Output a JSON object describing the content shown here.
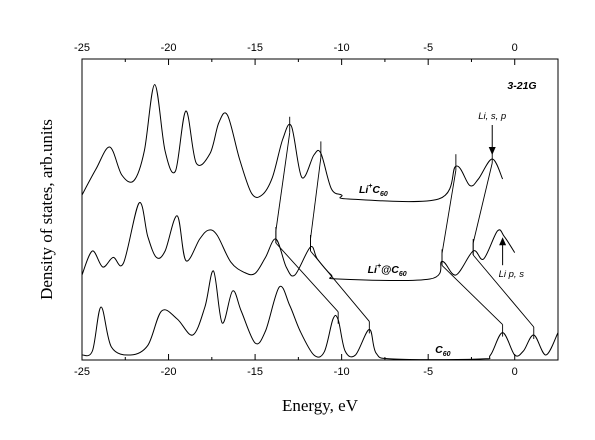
{
  "chart_data": {
    "type": "line",
    "title": "",
    "xlabel": "Energy, eV",
    "ylabel": "Density of states, arb.units",
    "xlim": [
      -25,
      2.5
    ],
    "xticks": [
      -25,
      -20,
      -15,
      -10,
      -5,
      0
    ],
    "xtick_labels": [
      "-25",
      "-20",
      "-15",
      "-10",
      "-5",
      "0"
    ],
    "top_axis": true,
    "y_ticks_shown": false,
    "grid": false,
    "legend": "none",
    "basis_label": "3-21G",
    "series": [
      {
        "label_main": "Li",
        "label_sup": "+",
        "label_after": "C",
        "label_sub": "60",
        "offset": 2.0,
        "x": [
          -25.0,
          -24.2,
          -23.4,
          -22.7,
          -22.0,
          -21.4,
          -20.8,
          -20.2,
          -19.6,
          -19.0,
          -18.4,
          -17.6,
          -17.1,
          -16.6,
          -15.9,
          -15.2,
          -14.6,
          -14.0,
          -13.4,
          -12.9,
          -12.3,
          -11.6,
          -11.2,
          -10.6,
          -10.0,
          -9.6,
          -4.4,
          -3.4,
          -2.6,
          -2.1,
          -1.3,
          -0.7
        ],
        "y": [
          0.0,
          0.32,
          0.6,
          0.25,
          0.18,
          0.55,
          1.38,
          0.55,
          0.3,
          1.05,
          0.4,
          0.52,
          0.9,
          1.0,
          0.45,
          0.02,
          0.0,
          0.22,
          0.7,
          0.86,
          0.22,
          0.5,
          0.52,
          0.08,
          0.0,
          -0.05,
          -0.05,
          0.36,
          0.12,
          0.2,
          0.45,
          0.2
        ]
      },
      {
        "label_main": "Li",
        "label_sup": "+",
        "label_after": "@C",
        "label_sub": "60",
        "offset": 1.0,
        "x": [
          -25.0,
          -24.4,
          -23.8,
          -23.2,
          -22.6,
          -21.7,
          -21.2,
          -20.7,
          -20.2,
          -19.5,
          -19.0,
          -18.2,
          -17.7,
          -17.2,
          -16.4,
          -15.6,
          -15.0,
          -14.4,
          -13.8,
          -13.2,
          -12.7,
          -11.8,
          -11.4,
          -10.6,
          -10.2,
          -4.9,
          -4.2,
          -3.4,
          -2.4,
          -1.8,
          -1.0,
          -0.6,
          0.0
        ],
        "y": [
          0.0,
          0.3,
          0.1,
          0.22,
          0.15,
          0.9,
          0.48,
          0.22,
          0.3,
          0.74,
          0.18,
          0.45,
          0.56,
          0.5,
          0.16,
          0.03,
          0.02,
          0.22,
          0.45,
          0.1,
          0.0,
          0.35,
          0.2,
          0.0,
          -0.05,
          -0.05,
          0.17,
          0.0,
          0.3,
          0.2,
          0.55,
          0.48,
          0.28
        ]
      },
      {
        "label_main": "C",
        "label_sup": "",
        "label_after": "",
        "label_sub": "60",
        "offset": 0.0,
        "x": [
          -25.0,
          -24.4,
          -23.9,
          -23.3,
          -22.2,
          -21.2,
          -20.4,
          -19.5,
          -18.6,
          -17.9,
          -17.4,
          -16.9,
          -16.3,
          -15.8,
          -15.0,
          -14.4,
          -13.6,
          -13.0,
          -12.4,
          -11.6,
          -11.0,
          -10.5,
          -10.2,
          -9.8,
          -9.2,
          -8.4,
          -8.0,
          -7.0,
          -2.0,
          -1.4,
          -0.7,
          0.0,
          0.5,
          1.1,
          1.8,
          2.5
        ],
        "y": [
          0.0,
          0.05,
          0.6,
          0.1,
          0.0,
          0.12,
          0.55,
          0.45,
          0.25,
          0.6,
          1.05,
          0.4,
          0.8,
          0.55,
          0.15,
          0.3,
          0.85,
          0.62,
          0.3,
          0.0,
          0.04,
          0.45,
          0.44,
          0.05,
          0.0,
          0.32,
          0.02,
          -0.05,
          -0.05,
          0.0,
          0.28,
          0.0,
          0.05,
          0.25,
          0.0,
          0.28
        ]
      }
    ],
    "annotations": [
      {
        "text": "Li, s, p",
        "x": -1.3,
        "arrow": "down",
        "series": 0
      },
      {
        "text": "Li p, s",
        "x": -0.7,
        "arrow": "up",
        "series": 1
      }
    ],
    "level_connections": [
      {
        "from_series": 0,
        "to_series": 1,
        "x_from": -13.0,
        "x_to": -13.8
      },
      {
        "from_series": 1,
        "to_series": 2,
        "x_from": -13.8,
        "x_to": -10.2
      },
      {
        "from_series": 0,
        "to_series": 1,
        "x_from": -11.2,
        "x_to": -11.8
      },
      {
        "from_series": 1,
        "to_series": 2,
        "x_from": -11.8,
        "x_to": -8.4
      },
      {
        "from_series": 0,
        "to_series": 1,
        "x_from": -3.4,
        "x_to": -4.2
      },
      {
        "from_series": 1,
        "to_series": 2,
        "x_from": -4.2,
        "x_to": -0.7
      },
      {
        "from_series": 0,
        "to_series": 1,
        "x_from": -1.3,
        "x_to": -2.4
      },
      {
        "from_series": 1,
        "to_series": 2,
        "x_from": -2.4,
        "x_to": 1.1
      }
    ]
  }
}
